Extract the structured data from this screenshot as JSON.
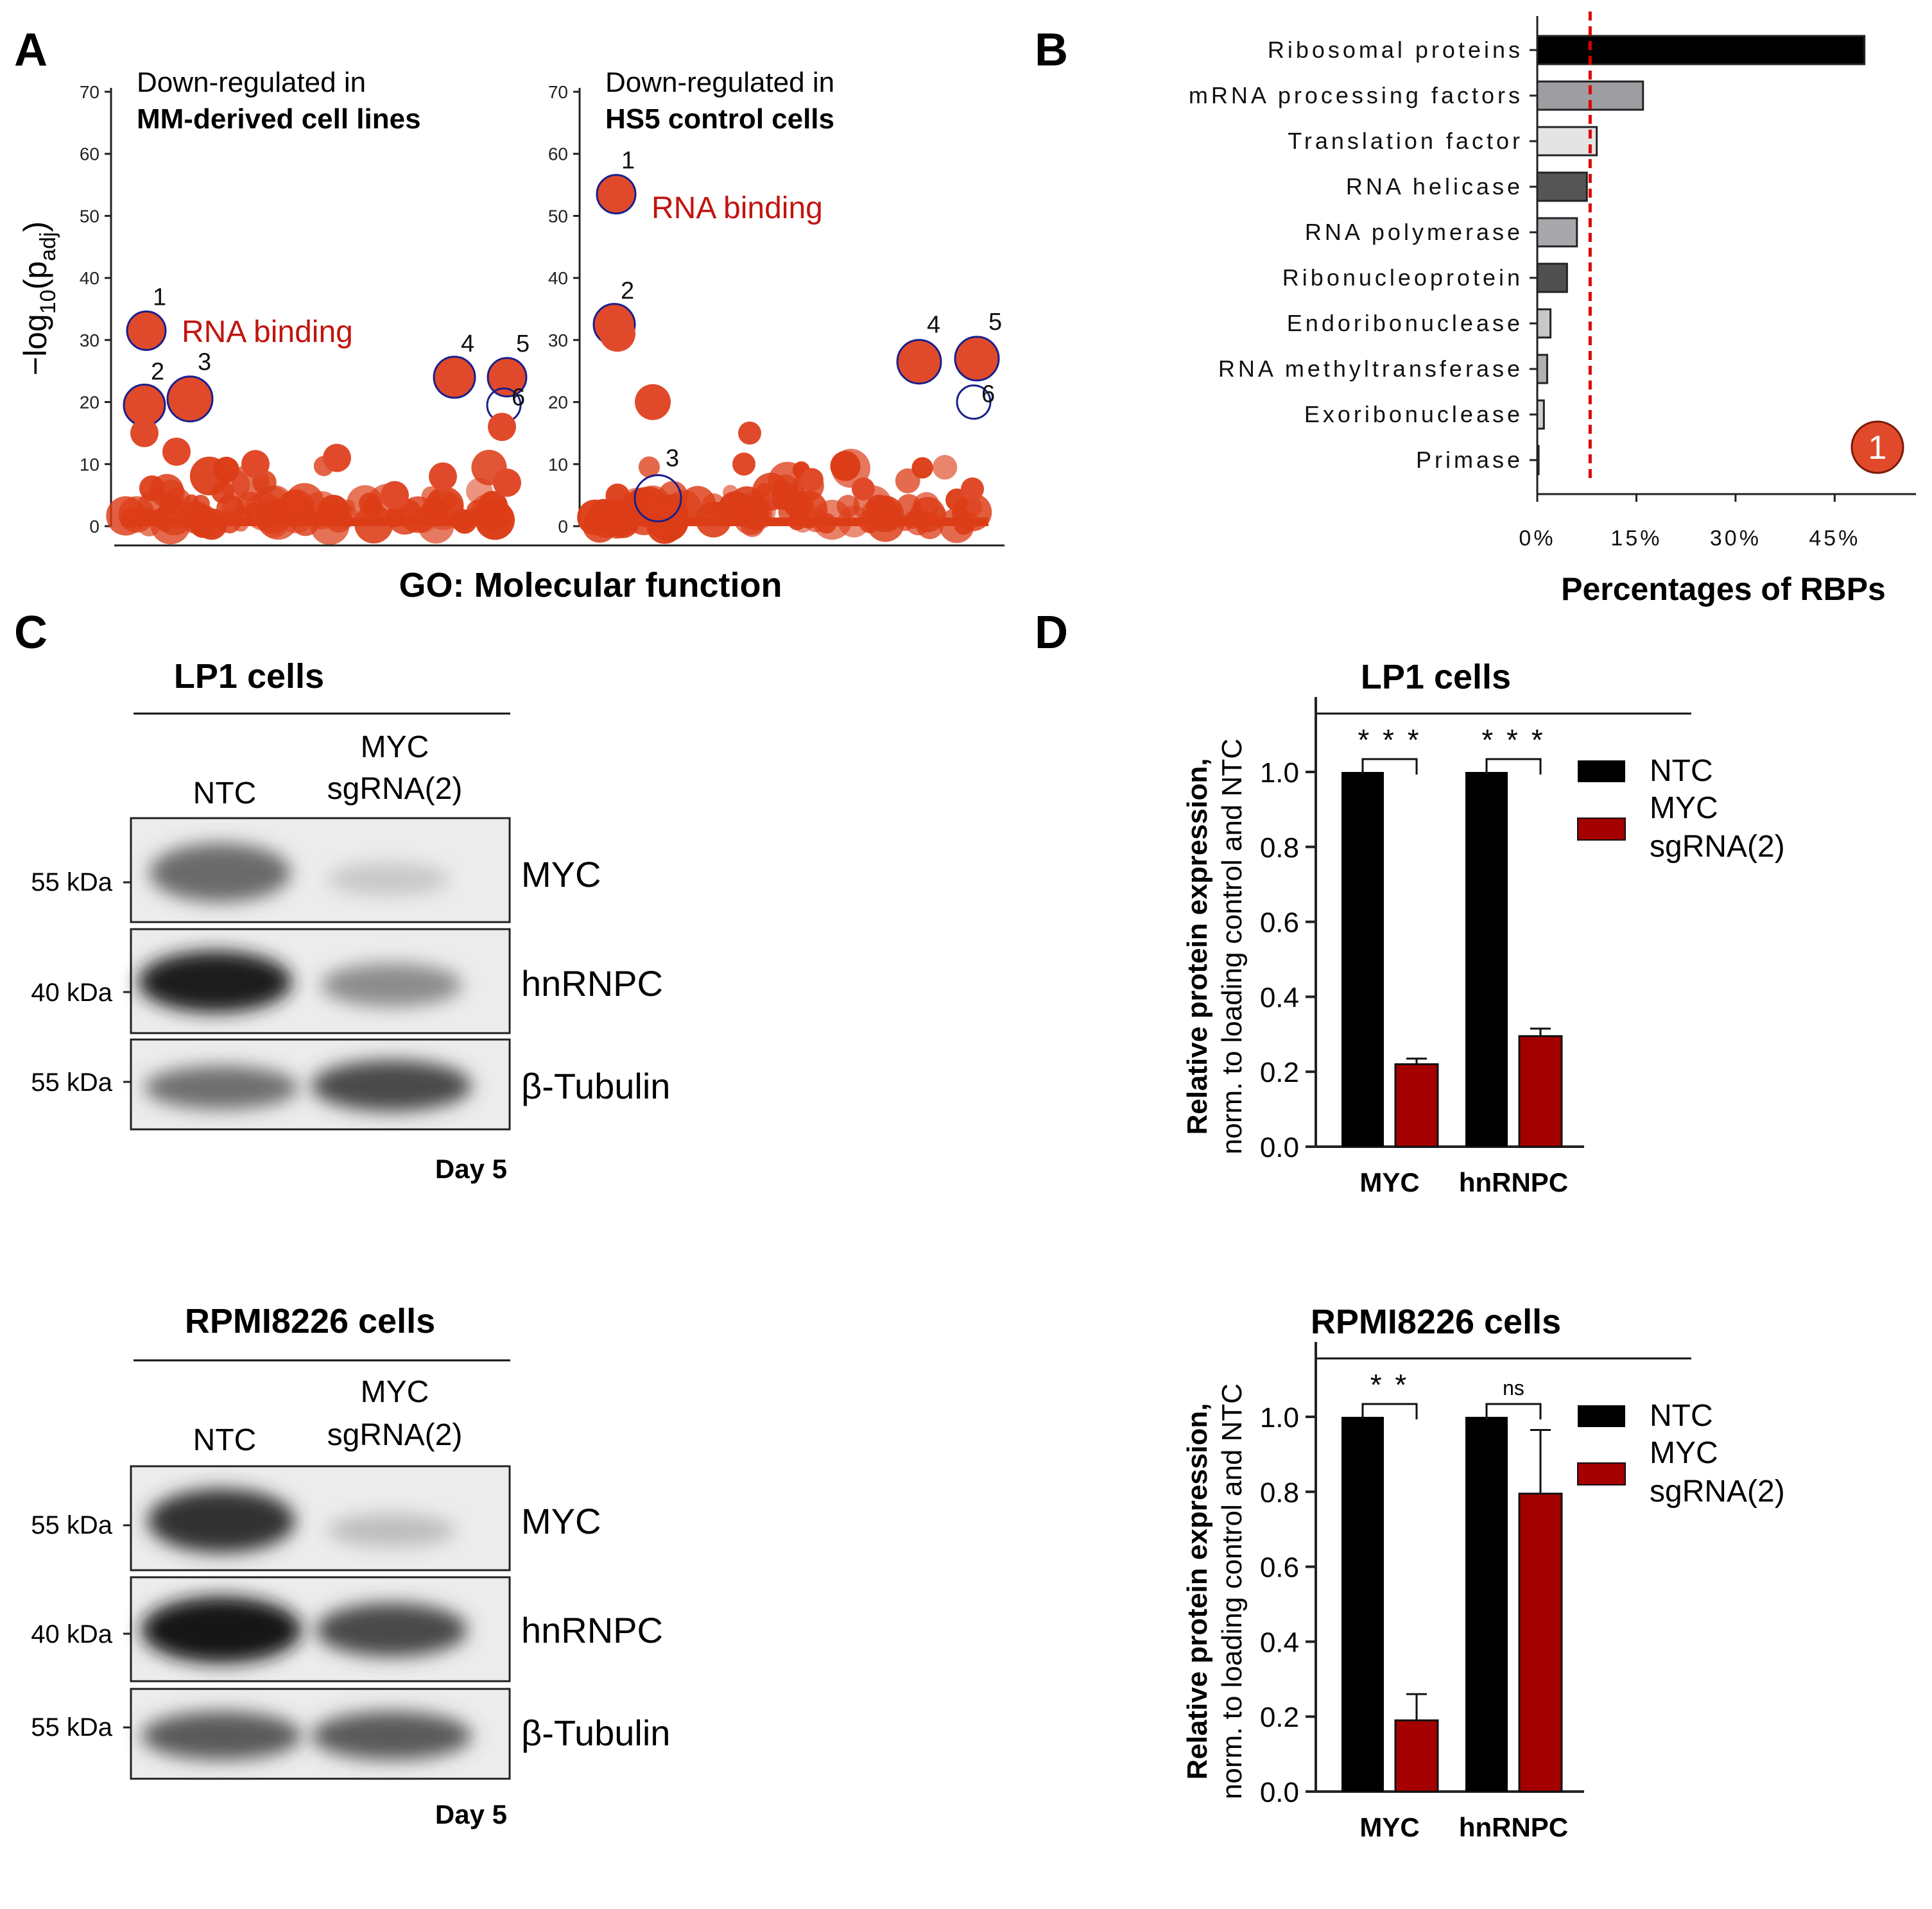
{
  "panels": {
    "a": {
      "letter": "A",
      "xlabel": "GO: Molecular function",
      "ylabel": "−log10(padj)",
      "ylabel_main": "−log",
      "ylabel_sub1": "10",
      "ylabel_mid": "(p",
      "ylabel_sub2": "adj",
      "ylabel_end": ")",
      "left": {
        "title_line1": "Down-regulated in",
        "title_line2": "MM-derived cell lines",
        "annotation": "RNA binding"
      },
      "right": {
        "title_line1": "Down-regulated in",
        "title_line2": "HS5 control cells",
        "annotation": "RNA binding"
      }
    },
    "b": {
      "letter": "B",
      "xlabel": "Percentages of RBPs",
      "badge": "1"
    },
    "c": {
      "letter": "C",
      "blocks": [
        {
          "title": "LP1 cells",
          "lane1": "NTC",
          "lane2_line1": "MYC",
          "lane2_line2": "sgRNA(2)",
          "rows": [
            {
              "kda": "55 kDa",
              "protein": "MYC"
            },
            {
              "kda": "40 kDa",
              "protein": "hnRNPC"
            },
            {
              "kda": "55 kDa",
              "protein": "β-Tubulin"
            }
          ],
          "day": "Day 5"
        },
        {
          "title": "RPMI8226 cells",
          "lane1": "NTC",
          "lane2_line1": "MYC",
          "lane2_line2": "sgRNA(2)",
          "rows": [
            {
              "kda": "55 kDa",
              "protein": "MYC"
            },
            {
              "kda": "40 kDa",
              "protein": "hnRNPC"
            },
            {
              "kda": "55 kDa",
              "protein": "β-Tubulin"
            }
          ],
          "day": "Day 5"
        }
      ]
    },
    "d": {
      "letter": "D",
      "ylabel_line1": "Relative protein expression,",
      "ylabel_line2": "norm. to loading control and NTC",
      "legend": {
        "ntc": "NTC",
        "myc_line1": "MYC",
        "myc_line2": "sgRNA(2)"
      }
    }
  },
  "colors": {
    "bubble": "#e04a2a",
    "bubble_dense": "#dc3d17",
    "ring": "#1a1f8c",
    "annotation_red": "#c0150f",
    "ntc": "#000000",
    "myc_sgrna": "#a50000",
    "threshold": "#e00000"
  },
  "chart_data": [
    {
      "type": "scatter",
      "panel": "A-left",
      "title": "Down-regulated in MM-derived cell lines",
      "xlabel": "GO: Molecular function",
      "ylabel": "−log10(padj)",
      "ylim": [
        0,
        70
      ],
      "yticks": [
        0,
        10,
        20,
        30,
        40,
        50,
        60,
        70
      ],
      "labeled_points": [
        {
          "label": "1",
          "y": 31.5
        },
        {
          "label": "2",
          "y": 19.5
        },
        {
          "label": "3",
          "y": 20.5
        },
        {
          "label": "4",
          "y": 24
        },
        {
          "label": "5",
          "y": 24
        },
        {
          "label": "6",
          "y": 19.5
        }
      ],
      "annotation": "RNA binding"
    },
    {
      "type": "scatter",
      "panel": "A-right",
      "title": "Down-regulated in HS5 control cells",
      "xlabel": "GO: Molecular function",
      "ylabel": "−log10(padj)",
      "ylim": [
        0,
        70
      ],
      "yticks": [
        0,
        10,
        20,
        30,
        40,
        50,
        60,
        70
      ],
      "labeled_points": [
        {
          "label": "1",
          "y": 53.5
        },
        {
          "label": "2",
          "y": 32.5
        },
        {
          "label": "3",
          "y": 4.5
        },
        {
          "label": "4",
          "y": 26.5
        },
        {
          "label": "5",
          "y": 27
        },
        {
          "label": "6",
          "y": 20
        }
      ],
      "annotation": "RNA binding"
    },
    {
      "type": "bar",
      "panel": "B",
      "orientation": "horizontal",
      "xlabel": "Percentages of RBPs",
      "categories": [
        "Ribosomal proteins",
        "mRNA processing factors",
        "Translation factor",
        "RNA helicase",
        "RNA polymerase",
        "Ribonucleoprotein",
        "Endoribonuclease",
        "RNA methyltransferase",
        "Exoribonuclease",
        "Primase"
      ],
      "values": [
        49.5,
        16,
        9,
        7.5,
        6,
        4.5,
        2,
        1.5,
        1,
        0.2
      ],
      "bar_colors": [
        "#000000",
        "#9e9ea2",
        "#e4e4e4",
        "#555555",
        "#a8a8ac",
        "#505050",
        "#c8c8c8",
        "#b0b0b0",
        "#d0d0d0",
        "#ffffff"
      ],
      "xticks": [
        "0%",
        "15%",
        "30%",
        "45%"
      ],
      "xlim": [
        0,
        55
      ],
      "threshold": 8
    },
    {
      "type": "bar",
      "panel": "D-top",
      "title": "LP1 cells",
      "categories": [
        "MYC",
        "hnRNPC"
      ],
      "series": [
        {
          "name": "NTC",
          "values": [
            1.0,
            1.0
          ],
          "errors": [
            0,
            0
          ]
        },
        {
          "name": "MYC sgRNA(2)",
          "values": [
            0.22,
            0.295
          ],
          "errors": [
            0.015,
            0.02
          ]
        }
      ],
      "significance": [
        "* * *",
        "* * *"
      ],
      "ylim": [
        0,
        1.2
      ],
      "yticks": [
        "0.0",
        "0.2",
        "0.4",
        "0.6",
        "0.8",
        "1.0"
      ]
    },
    {
      "type": "bar",
      "panel": "D-bottom",
      "title": "RPMI8226 cells",
      "categories": [
        "MYC",
        "hnRNPC"
      ],
      "series": [
        {
          "name": "NTC",
          "values": [
            1.0,
            1.0
          ],
          "errors": [
            0,
            0
          ]
        },
        {
          "name": "MYC sgRNA(2)",
          "values": [
            0.19,
            0.795
          ],
          "errors": [
            0.07,
            0.17
          ]
        }
      ],
      "significance": [
        "* *",
        "ns"
      ],
      "ylim": [
        0,
        1.2
      ],
      "yticks": [
        "0.0",
        "0.2",
        "0.4",
        "0.6",
        "0.8",
        "1.0"
      ]
    }
  ]
}
